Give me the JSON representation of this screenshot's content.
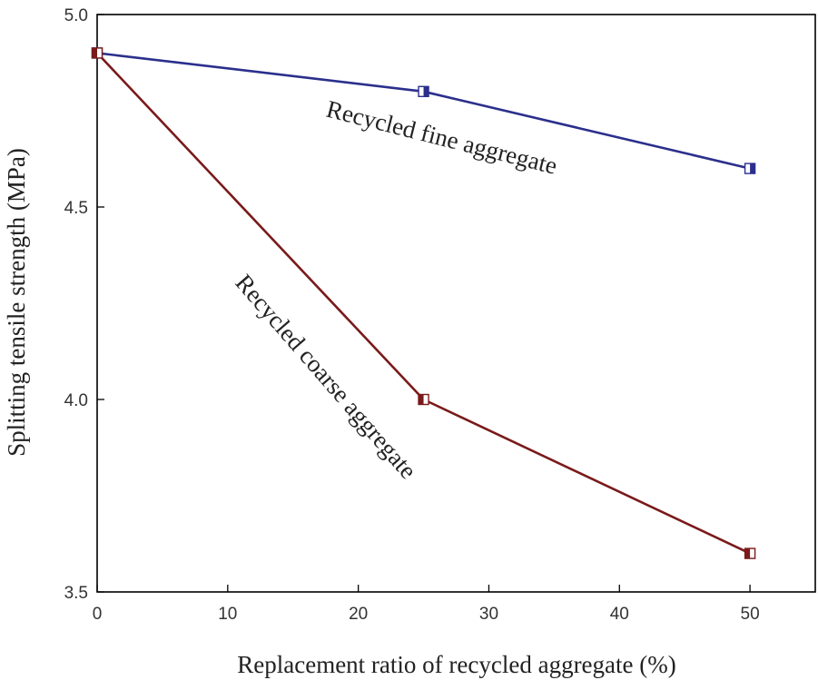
{
  "chart_data": {
    "type": "line",
    "title": "",
    "xlabel": "Replacement ratio of recycled aggregate (%)",
    "ylabel": "Splitting tensile strength (MPa)",
    "xlim": [
      0,
      55
    ],
    "ylim": [
      3.5,
      5.0
    ],
    "xticks": [
      0,
      10,
      20,
      30,
      40,
      50
    ],
    "yticks": [
      3.5,
      4.0,
      4.5,
      5.0
    ],
    "x_tick_labels": [
      "0",
      "10",
      "20",
      "30",
      "40",
      "50"
    ],
    "y_tick_labels": [
      "3.5",
      "4.0",
      "4.5",
      "5.0"
    ],
    "grid": false,
    "series": [
      {
        "name": "Recycled fine aggregate",
        "color": "#2b2f8c",
        "marker": "half-filled-square-right",
        "x": [
          0,
          25,
          50
        ],
        "y": [
          4.9,
          4.8,
          4.6
        ]
      },
      {
        "name": "Recycled coarse aggregate",
        "color": "#7a1a1a",
        "marker": "half-filled-square-left",
        "x": [
          0,
          25,
          50
        ],
        "y": [
          4.9,
          4.0,
          3.6
        ]
      }
    ]
  }
}
